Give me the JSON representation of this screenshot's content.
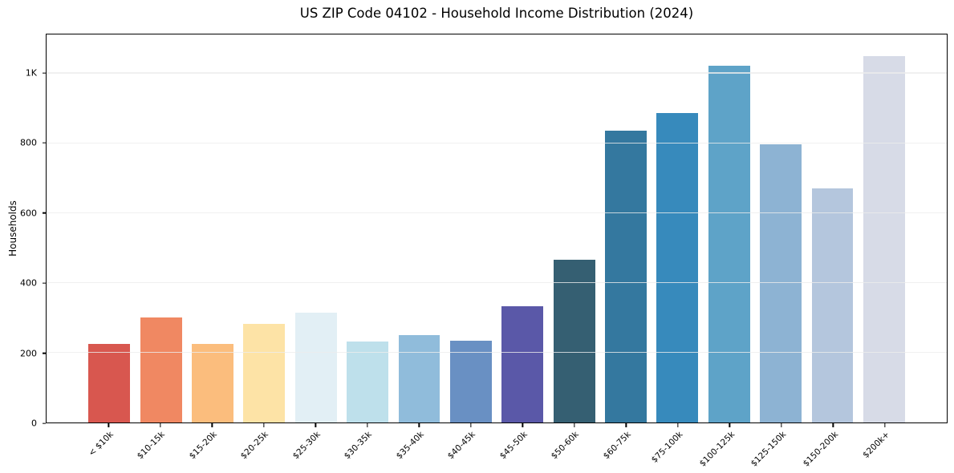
{
  "figure": {
    "background": "#ffffff"
  },
  "chart_data": {
    "type": "bar",
    "title": "US ZIP Code 04102 - Household Income Distribution (2024)",
    "xlabel": "",
    "ylabel": "Households",
    "categories": [
      "< $10k",
      "$10-15k",
      "$15-20k",
      "$20-25k",
      "$25-30k",
      "$30-35k",
      "$35-40k",
      "$40-45k",
      "$45-50k",
      "$50-60k",
      "$60-75k",
      "$75-100k",
      "$100-125k",
      "$125-150k",
      "$150-200k",
      "$200k+"
    ],
    "values": [
      225,
      300,
      225,
      283,
      314,
      231,
      250,
      235,
      333,
      467,
      836,
      886,
      1022,
      797,
      671,
      1050
    ],
    "bar_colors": [
      "#d8574f",
      "#f08862",
      "#fbbd7d",
      "#fde3a6",
      "#e2eff5",
      "#bee0eb",
      "#90bcdb",
      "#6990c3",
      "#5a58a8",
      "#355f72",
      "#34789f",
      "#378abc",
      "#5ea3c8",
      "#8db3d3",
      "#b4c6dd",
      "#d7dbe7"
    ],
    "ylim": [
      0,
      1112
    ],
    "ytick_values": [
      0,
      200,
      400,
      600,
      800,
      1000
    ],
    "ytick_labels": [
      "0",
      "200",
      "400",
      "600",
      "800",
      "1K"
    ],
    "grid": "horizontal",
    "grid_values": [
      200,
      400,
      600,
      800,
      1000
    ],
    "legend": "none"
  }
}
